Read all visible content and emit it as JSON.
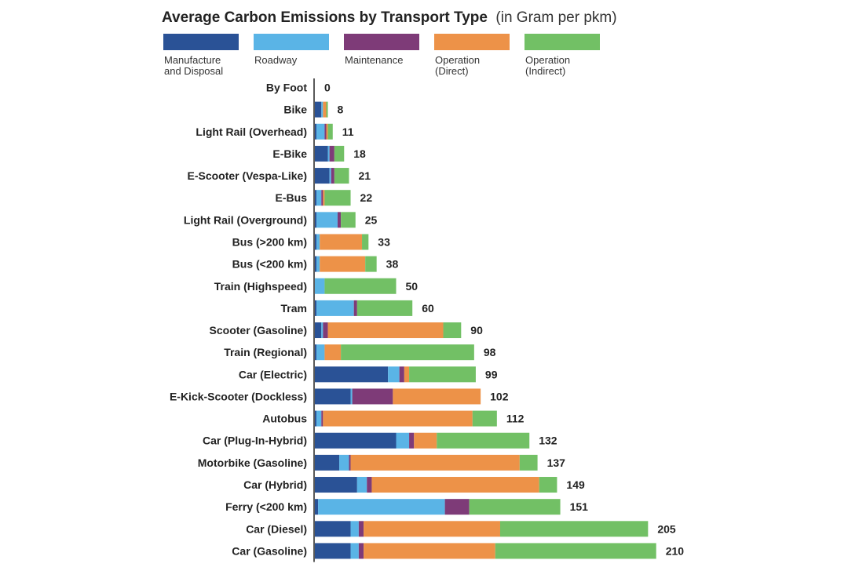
{
  "chart_data": {
    "type": "bar",
    "orientation": "horizontal",
    "stacked": true,
    "title": "Average Carbon Emissions by Transport Type",
    "subtitle": "(in Gram per pkm)",
    "xlabel": "",
    "ylabel": "",
    "xlim": [
      0,
      210
    ],
    "grid": false,
    "legend_position": "top",
    "series": [
      {
        "name": "Manufacture and Disposal",
        "label_lines": [
          "Manufacture",
          "and Disposal"
        ],
        "color": "#2a5296",
        "values": [
          0,
          4,
          1,
          8,
          9,
          1,
          1,
          1,
          1,
          0,
          1,
          4,
          1,
          45,
          22,
          1,
          50,
          15,
          26,
          2,
          22,
          22
        ]
      },
      {
        "name": "Roadway",
        "label_lines": [
          "Roadway"
        ],
        "color": "#5ab4e6",
        "values": [
          0,
          1,
          5,
          1,
          1,
          3,
          13,
          2,
          2,
          6,
          23,
          1,
          5,
          7,
          1,
          3,
          8,
          6,
          6,
          78,
          5,
          5
        ]
      },
      {
        "name": "Maintenance",
        "label_lines": [
          "Maintenance"
        ],
        "color": "#7e3b78",
        "values": [
          0,
          0,
          1,
          3,
          2,
          1,
          2,
          0,
          0,
          0,
          2,
          3,
          0,
          3,
          25,
          1,
          3,
          1,
          3,
          15,
          3,
          3
        ]
      },
      {
        "name": "Operation (Direct)",
        "label_lines": [
          "Operation",
          "(Direct)"
        ],
        "color": "#ed9248",
        "values": [
          0,
          2,
          1,
          0,
          0,
          1,
          0,
          26,
          28,
          0,
          0,
          71,
          10,
          3,
          54,
          92,
          14,
          104,
          103,
          0,
          84,
          81
        ]
      },
      {
        "name": "Operation (Indirect)",
        "label_lines": [
          "Operation",
          "(Indirect)"
        ],
        "color": "#72c065",
        "values": [
          0,
          1,
          3,
          6,
          9,
          16,
          9,
          4,
          7,
          44,
          34,
          11,
          82,
          41,
          0,
          15,
          57,
          11,
          11,
          56,
          91,
          99
        ]
      }
    ],
    "categories": [
      "By Foot",
      "Bike",
      "Light Rail (Overhead)",
      "E-Bike",
      "E-Scooter (Vespa-Like)",
      "E-Bus",
      "Light Rail (Overground)",
      "Bus (>200 km)",
      "Bus (<200 km)",
      "Train (Highspeed)",
      "Tram",
      "Scooter (Gasoline)",
      "Train (Regional)",
      "Car (Electric)",
      "E-Kick-Scooter (Dockless)",
      "Autobus",
      "Car (Plug-In-Hybrid)",
      "Motorbike (Gasoline)",
      "Car (Hybrid)",
      "Ferry (<200 km)",
      "Car (Diesel)",
      "Car (Gasoline)"
    ],
    "totals": [
      0,
      8,
      11,
      18,
      21,
      22,
      25,
      33,
      38,
      50,
      60,
      90,
      98,
      99,
      102,
      112,
      132,
      137,
      149,
      151,
      205,
      210
    ],
    "colors": {
      "manufacture": "#2a5296",
      "roadway": "#5ab4e6",
      "maintenance": "#7e3b78",
      "operation_direct": "#ed9248",
      "operation_indirect": "#72c065"
    }
  }
}
